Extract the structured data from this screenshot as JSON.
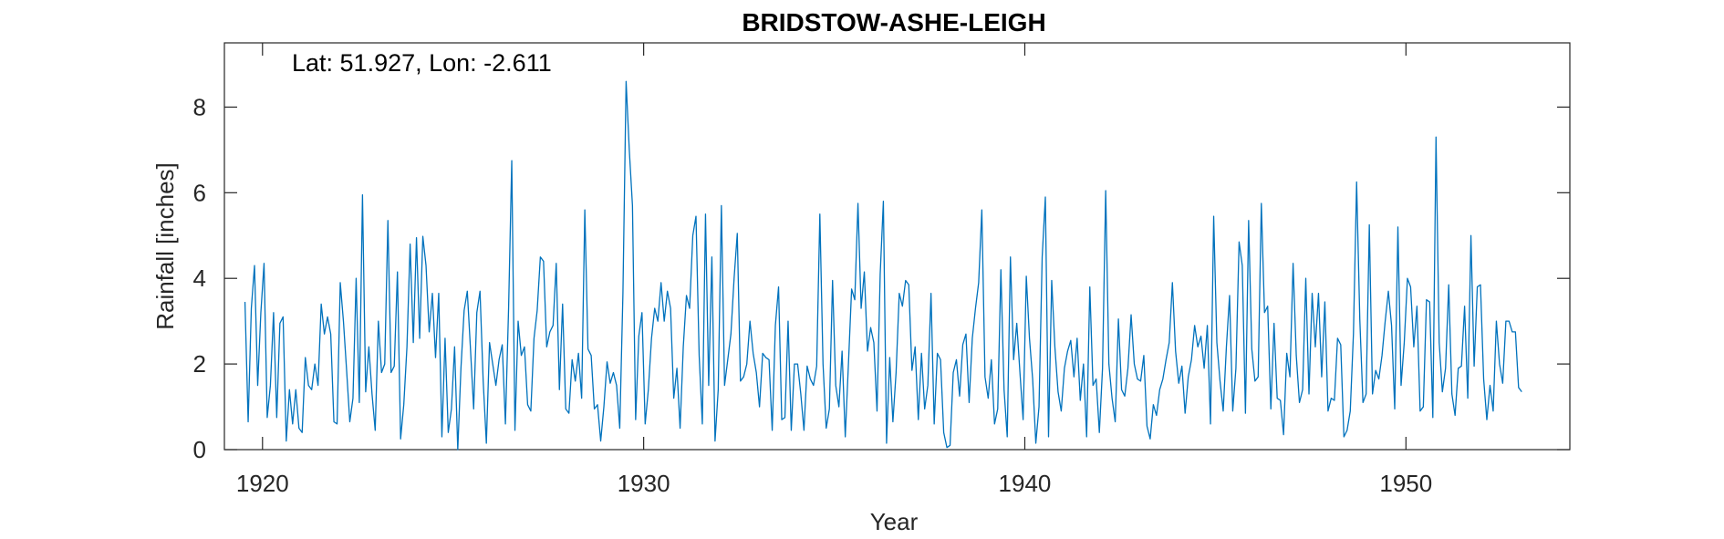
{
  "chart_data": {
    "type": "line",
    "title": "BRIDSTOW-ASHE-LEIGH",
    "annotation": "Lat: 51.927, Lon: -2.611",
    "xlabel": "Year",
    "ylabel": "Rainfall [inches]",
    "xlim": [
      1919,
      1954.3
    ],
    "ylim": [
      0,
      9.5
    ],
    "xticks": [
      1920,
      1930,
      1940,
      1950
    ],
    "xtick_labels": [
      "1920",
      "1930",
      "1940",
      "1950"
    ],
    "yticks": [
      0,
      2,
      4,
      6,
      8
    ],
    "ytick_labels": [
      "0",
      "2",
      "4",
      "6",
      "8"
    ],
    "grid": false,
    "line_color": "#0072BD",
    "series": [
      {
        "x_start": 1919.54,
        "step": 0.08333,
        "values": [
          3.45,
          0.65,
          3.3,
          4.3,
          1.5,
          3.2,
          4.35,
          0.75,
          1.5,
          3.2,
          0.75,
          2.95,
          3.1,
          0.2,
          1.4,
          0.6,
          1.4,
          0.5,
          0.4,
          2.15,
          1.5,
          1.4,
          2.0,
          1.5,
          3.4,
          2.7,
          3.1,
          2.7,
          0.65,
          0.6,
          3.9,
          3.0,
          1.85,
          0.65,
          1.2,
          4.0,
          1.1,
          5.95,
          1.35,
          2.4,
          1.3,
          0.45,
          3.0,
          1.8,
          2.0,
          5.35,
          1.8,
          1.95,
          4.15,
          0.25,
          1.05,
          2.4,
          4.8,
          2.5,
          4.95,
          2.6,
          4.98,
          4.3,
          2.75,
          3.65,
          2.15,
          3.65,
          0.3,
          2.6,
          0.4,
          0.95,
          2.4,
          0.0,
          1.9,
          3.25,
          3.7,
          2.35,
          0.95,
          3.2,
          3.7,
          1.6,
          0.15,
          2.5,
          2.0,
          1.5,
          2.1,
          2.45,
          0.6,
          3.3,
          6.75,
          0.45,
          3.0,
          2.2,
          2.4,
          1.05,
          0.9,
          2.6,
          3.25,
          4.5,
          4.4,
          2.4,
          2.75,
          2.9,
          4.35,
          1.4,
          3.4,
          0.95,
          0.85,
          2.1,
          1.6,
          2.25,
          1.2,
          5.6,
          2.35,
          2.2,
          0.95,
          1.05,
          0.2,
          1.0,
          2.05,
          1.55,
          1.8,
          1.5,
          0.5,
          3.65,
          8.6,
          7.0,
          5.7,
          0.7,
          2.65,
          3.2,
          0.6,
          1.4,
          2.6,
          3.3,
          3.0,
          3.9,
          3.0,
          3.7,
          3.3,
          1.2,
          1.9,
          0.5,
          2.4,
          3.6,
          3.3,
          5.0,
          5.45,
          2.2,
          0.6,
          5.5,
          1.5,
          4.5,
          0.2,
          1.4,
          5.7,
          1.5,
          2.1,
          2.7,
          4.0,
          5.05,
          1.6,
          1.7,
          2.0,
          3.0,
          2.25,
          1.8,
          1.0,
          2.25,
          2.15,
          2.1,
          0.45,
          2.9,
          3.8,
          0.7,
          0.75,
          3.0,
          0.45,
          2.0,
          2.0,
          1.3,
          0.45,
          1.95,
          1.65,
          1.5,
          1.95,
          5.5,
          2.0,
          0.5,
          0.95,
          3.95,
          1.5,
          1.0,
          2.3,
          0.3,
          2.0,
          3.75,
          3.5,
          5.75,
          3.3,
          4.15,
          2.3,
          2.85,
          2.5,
          0.9,
          4.1,
          5.8,
          0.15,
          2.15,
          0.65,
          1.8,
          3.65,
          3.35,
          3.95,
          3.85,
          1.85,
          2.4,
          0.7,
          2.25,
          0.95,
          1.5,
          3.65,
          0.6,
          2.25,
          2.1,
          0.4,
          0.05,
          0.1,
          1.8,
          2.1,
          1.25,
          2.45,
          2.7,
          1.1,
          2.6,
          3.3,
          3.9,
          5.6,
          1.7,
          1.2,
          2.1,
          0.6,
          0.95,
          4.2,
          1.4,
          0.3,
          4.5,
          2.1,
          2.95,
          1.8,
          0.7,
          4.05,
          2.6,
          1.65,
          0.15,
          1.0,
          4.5,
          5.9,
          0.3,
          3.95,
          2.4,
          1.35,
          0.9,
          1.9,
          2.3,
          2.55,
          1.7,
          2.6,
          1.15,
          2.0,
          0.3,
          3.8,
          1.5,
          1.65,
          0.4,
          1.9,
          6.05,
          2.0,
          1.2,
          0.65,
          3.05,
          1.4,
          1.25,
          1.9,
          3.15,
          2.0,
          1.65,
          1.6,
          2.2,
          0.55,
          0.25,
          1.05,
          0.8,
          1.4,
          1.65,
          2.1,
          2.5,
          3.9,
          2.3,
          1.55,
          1.95,
          0.85,
          1.7,
          2.1,
          2.9,
          2.4,
          2.65,
          1.9,
          2.9,
          0.6,
          5.45,
          2.5,
          1.6,
          0.9,
          2.4,
          3.6,
          0.9,
          1.9,
          4.85,
          4.3,
          0.85,
          5.35,
          2.35,
          1.6,
          1.7,
          5.75,
          3.2,
          3.35,
          0.95,
          2.95,
          1.2,
          1.15,
          0.35,
          2.25,
          1.7,
          4.35,
          2.2,
          1.1,
          1.4,
          4.0,
          1.3,
          3.65,
          2.4,
          3.65,
          1.7,
          3.45,
          0.9,
          1.2,
          1.15,
          2.6,
          2.45,
          0.3,
          0.45,
          0.9,
          2.7,
          6.25,
          3.05,
          1.1,
          1.3,
          5.25,
          1.3,
          1.85,
          1.65,
          2.2,
          3.0,
          3.7,
          2.9,
          0.95,
          5.2,
          1.5,
          2.5,
          4.0,
          3.8,
          2.4,
          3.35,
          0.9,
          1.0,
          3.5,
          3.45,
          0.75,
          7.3,
          2.5,
          1.35,
          1.9,
          3.85,
          1.3,
          0.8,
          1.9,
          1.95,
          3.35,
          1.2,
          5.0,
          1.95,
          3.8,
          3.85,
          1.65,
          0.7,
          1.5,
          0.9,
          3.0,
          2.0,
          1.55,
          3.0,
          3.0,
          2.75,
          2.75,
          1.45,
          1.35
        ]
      }
    ]
  }
}
